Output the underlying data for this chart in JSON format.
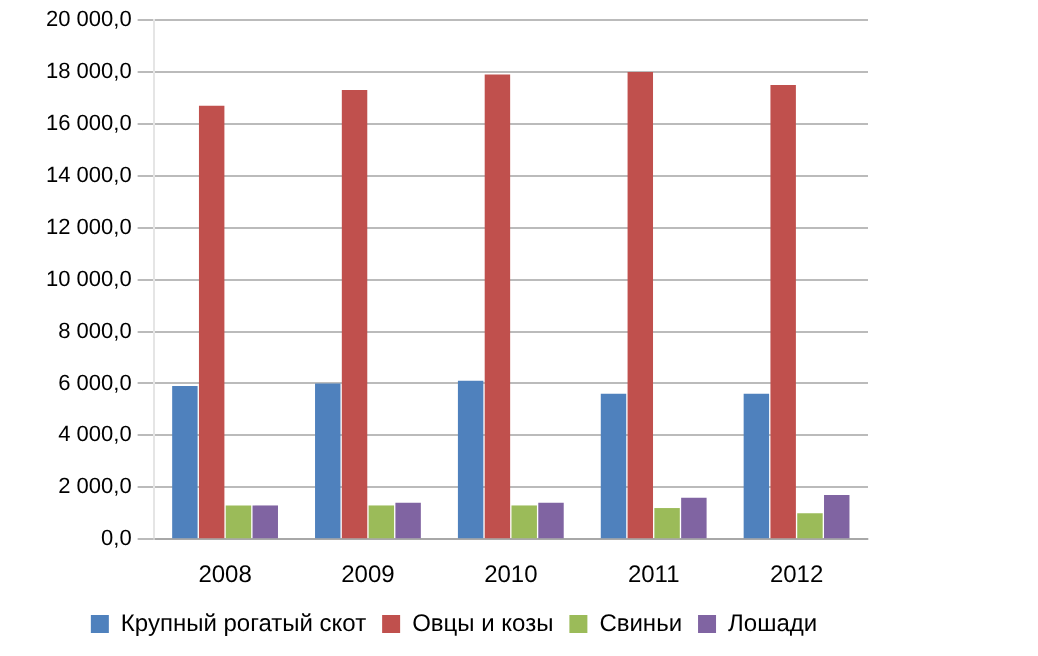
{
  "chart_data": {
    "type": "bar",
    "categories": [
      "2008",
      "2009",
      "2010",
      "2011",
      "2012"
    ],
    "series": [
      {
        "name": "Крупный рогатый скот",
        "color": "#4f81bd",
        "values": [
          5900,
          6000,
          6100,
          5600,
          5600
        ]
      },
      {
        "name": "Овцы и козы",
        "color": "#c0504d",
        "values": [
          16700,
          17300,
          17900,
          18000,
          17500
        ]
      },
      {
        "name": "Свиньи",
        "color": "#9bbb59",
        "values": [
          1300,
          1300,
          1300,
          1200,
          1000
        ]
      },
      {
        "name": "Лошади",
        "color": "#8064a2",
        "values": [
          1300,
          1400,
          1400,
          1600,
          1700
        ]
      }
    ],
    "ylim": [
      0,
      20000
    ],
    "yticks": [
      {
        "value": 0,
        "label": "0,0"
      },
      {
        "value": 2000,
        "label": "2 000,0"
      },
      {
        "value": 4000,
        "label": "4 000,0"
      },
      {
        "value": 6000,
        "label": "6 000,0"
      },
      {
        "value": 8000,
        "label": "8 000,0"
      },
      {
        "value": 10000,
        "label": "10 000,0"
      },
      {
        "value": 12000,
        "label": "12 000,0"
      },
      {
        "value": 14000,
        "label": "14 000,0"
      },
      {
        "value": 16000,
        "label": "16 000,0"
      },
      {
        "value": 18000,
        "label": "18 000,0"
      },
      {
        "value": 20000,
        "label": "20 000,0"
      }
    ],
    "grid": "y",
    "legend": "bottom"
  }
}
